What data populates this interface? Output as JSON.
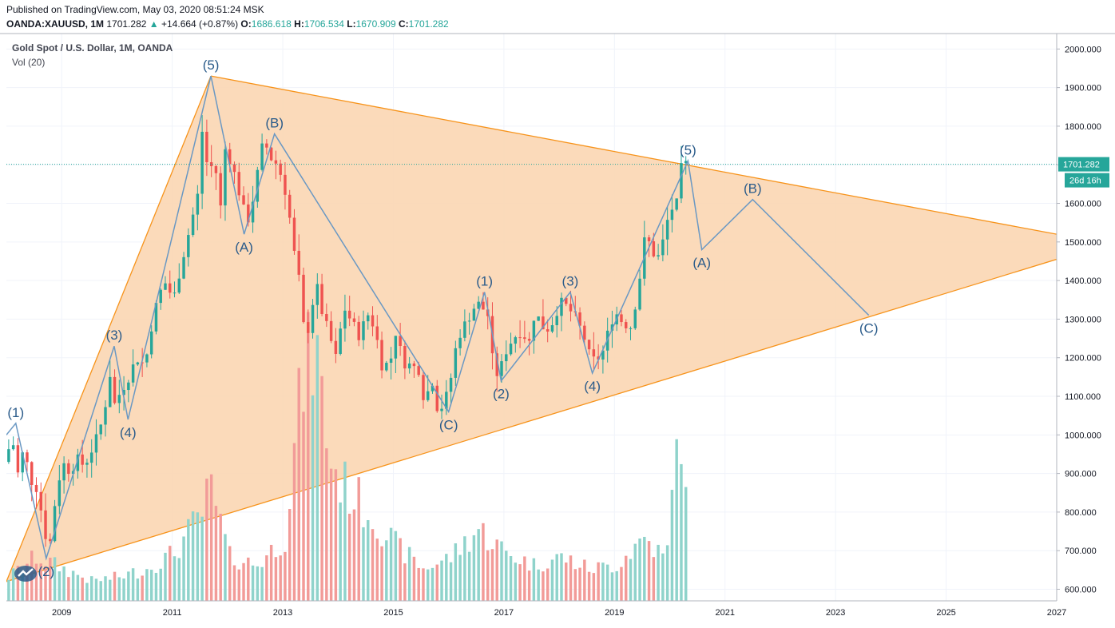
{
  "header": {
    "published": "Published on TradingView.com, May 03, 2020 08:51:24 MSK",
    "symbol": "OANDA:XAUUSD, 1M",
    "last": "1701.282",
    "change_arrow": "▲",
    "change": "+14.664 (+0.87%)",
    "open_label": "O:",
    "open": "1686.618",
    "high_label": "H:",
    "high": "1706.534",
    "low_label": "L:",
    "low": "1670.909",
    "close_label": "C:",
    "close": "1701.282"
  },
  "legend": {
    "title": "Gold Spot / U.S. Dollar, 1M, OANDA",
    "volume": "Vol (20)"
  },
  "colors": {
    "up": "#26a69a",
    "down": "#ef5350",
    "vol_up": "#8fd3cb",
    "vol_down": "#f29b98",
    "triangle_line": "#f7931a",
    "triangle_fill": "#fbd6b2",
    "wave": "#6a98c3",
    "label": "#2a5b8a",
    "price_tag": "#26a69a"
  },
  "chart_data": {
    "type": "candlestick",
    "title": "Gold Spot / U.S. Dollar, 1M, OANDA",
    "y_range": [
      570,
      2040
    ],
    "x_range": [
      2008.0,
      2027.0
    ],
    "y_ticks": [
      "600.000",
      "700.000",
      "800.000",
      "900.000",
      "1000.000",
      "1100.000",
      "1200.000",
      "1300.000",
      "1400.000",
      "1500.000",
      "1600.000",
      "1700.000",
      "1800.000",
      "1900.000",
      "2000.000"
    ],
    "x_ticks": [
      "2009",
      "2011",
      "2013",
      "2015",
      "2017",
      "2019",
      "2021",
      "2023",
      "2025",
      "2027"
    ],
    "last_price": "1701.282",
    "countdown": "26d 16h",
    "price_path": [
      [
        2008.0,
        930
      ],
      [
        2008.15,
        990
      ],
      [
        2008.25,
        900
      ],
      [
        2008.35,
        960
      ],
      [
        2008.5,
        880
      ],
      [
        2008.6,
        860
      ],
      [
        2008.75,
        740
      ],
      [
        2008.85,
        720
      ],
      [
        2008.95,
        870
      ],
      [
        2009.1,
        930
      ],
      [
        2009.2,
        900
      ],
      [
        2009.3,
        940
      ],
      [
        2009.45,
        920
      ],
      [
        2009.55,
        950
      ],
      [
        2009.7,
        1000
      ],
      [
        2009.8,
        1050
      ],
      [
        2009.92,
        1160
      ],
      [
        2010.0,
        1080
      ],
      [
        2010.1,
        1110
      ],
      [
        2010.25,
        1150
      ],
      [
        2010.4,
        1200
      ],
      [
        2010.55,
        1180
      ],
      [
        2010.7,
        1310
      ],
      [
        2010.85,
        1380
      ],
      [
        2010.95,
        1400
      ],
      [
        2011.05,
        1340
      ],
      [
        2011.2,
        1440
      ],
      [
        2011.35,
        1530
      ],
      [
        2011.5,
        1620
      ],
      [
        2011.6,
        1820
      ],
      [
        2011.7,
        1650
      ],
      [
        2011.8,
        1740
      ],
      [
        2011.9,
        1560
      ],
      [
        2012.0,
        1740
      ],
      [
        2012.1,
        1710
      ],
      [
        2012.2,
        1660
      ],
      [
        2012.3,
        1600
      ],
      [
        2012.4,
        1550
      ],
      [
        2012.5,
        1610
      ],
      [
        2012.6,
        1690
      ],
      [
        2012.7,
        1770
      ],
      [
        2012.8,
        1720
      ],
      [
        2012.9,
        1710
      ],
      [
        2013.05,
        1660
      ],
      [
        2013.15,
        1580
      ],
      [
        2013.25,
        1470
      ],
      [
        2013.35,
        1390
      ],
      [
        2013.45,
        1230
      ],
      [
        2013.55,
        1320
      ],
      [
        2013.65,
        1390
      ],
      [
        2013.75,
        1320
      ],
      [
        2013.9,
        1250
      ],
      [
        2014.0,
        1200
      ],
      [
        2014.15,
        1330
      ],
      [
        2014.3,
        1290
      ],
      [
        2014.45,
        1250
      ],
      [
        2014.55,
        1320
      ],
      [
        2014.7,
        1280
      ],
      [
        2014.85,
        1170
      ],
      [
        2015.0,
        1200
      ],
      [
        2015.1,
        1280
      ],
      [
        2015.2,
        1190
      ],
      [
        2015.35,
        1180
      ],
      [
        2015.5,
        1170
      ],
      [
        2015.6,
        1090
      ],
      [
        2015.75,
        1140
      ],
      [
        2015.85,
        1060
      ],
      [
        2015.95,
        1080
      ],
      [
        2016.05,
        1120
      ],
      [
        2016.2,
        1250
      ],
      [
        2016.35,
        1290
      ],
      [
        2016.5,
        1330
      ],
      [
        2016.6,
        1340
      ],
      [
        2016.75,
        1310
      ],
      [
        2016.85,
        1175
      ],
      [
        2016.95,
        1150
      ],
      [
        2017.05,
        1210
      ],
      [
        2017.2,
        1250
      ],
      [
        2017.35,
        1270
      ],
      [
        2017.5,
        1240
      ],
      [
        2017.6,
        1320
      ],
      [
        2017.75,
        1280
      ],
      [
        2017.85,
        1275
      ],
      [
        2017.95,
        1300
      ],
      [
        2018.05,
        1345
      ],
      [
        2018.2,
        1330
      ],
      [
        2018.35,
        1300
      ],
      [
        2018.5,
        1250
      ],
      [
        2018.6,
        1200
      ],
      [
        2018.7,
        1190
      ],
      [
        2018.85,
        1220
      ],
      [
        2018.95,
        1280
      ],
      [
        2019.05,
        1320
      ],
      [
        2019.2,
        1290
      ],
      [
        2019.35,
        1280
      ],
      [
        2019.5,
        1410
      ],
      [
        2019.6,
        1520
      ],
      [
        2019.75,
        1470
      ],
      [
        2019.85,
        1460
      ],
      [
        2019.95,
        1520
      ],
      [
        2020.05,
        1590
      ],
      [
        2020.15,
        1580
      ],
      [
        2020.25,
        1690
      ],
      [
        2020.33,
        1701.282
      ]
    ],
    "volume_path": [
      [
        2008.0,
        30
      ],
      [
        2008.5,
        55
      ],
      [
        2009.0,
        40
      ],
      [
        2009.5,
        25
      ],
      [
        2010.0,
        30
      ],
      [
        2010.5,
        40
      ],
      [
        2011.0,
        60
      ],
      [
        2011.5,
        110
      ],
      [
        2011.65,
        140
      ],
      [
        2012.0,
        55
      ],
      [
        2012.5,
        45
      ],
      [
        2013.0,
        80
      ],
      [
        2013.3,
        270
      ],
      [
        2013.55,
        320
      ],
      [
        2013.8,
        180
      ],
      [
        2014.0,
        150
      ],
      [
        2014.4,
        120
      ],
      [
        2015.0,
        70
      ],
      [
        2015.5,
        40
      ],
      [
        2016.0,
        55
      ],
      [
        2016.5,
        90
      ],
      [
        2017.0,
        60
      ],
      [
        2017.5,
        45
      ],
      [
        2018.0,
        55
      ],
      [
        2018.5,
        40
      ],
      [
        2019.0,
        45
      ],
      [
        2019.5,
        80
      ],
      [
        2019.9,
        50
      ],
      [
        2020.15,
        240
      ],
      [
        2020.33,
        20
      ]
    ],
    "triangle": {
      "upper_from": [
        2011.7,
        1930
      ],
      "upper_to": [
        2027.0,
        1520
      ],
      "lower_from": [
        2008.0,
        620
      ],
      "lower_to": [
        2027.0,
        1455
      ],
      "left_from": [
        2008.0,
        620
      ],
      "left_to": [
        2011.7,
        1930
      ]
    },
    "wave_path": [
      [
        2008.0,
        1000
      ],
      [
        2008.17,
        1030
      ],
      [
        2008.72,
        680
      ],
      [
        2009.95,
        1230
      ],
      [
        2010.2,
        1040
      ],
      [
        2011.7,
        1930
      ],
      [
        2012.3,
        1520
      ],
      [
        2012.85,
        1780
      ],
      [
        2016.0,
        1060
      ],
      [
        2016.65,
        1370
      ],
      [
        2016.95,
        1140
      ],
      [
        2018.2,
        1370
      ],
      [
        2018.6,
        1160
      ],
      [
        2020.33,
        1710
      ],
      [
        2020.58,
        1480
      ],
      [
        2021.5,
        1610
      ],
      [
        2023.6,
        1310
      ]
    ],
    "wave_labels": [
      {
        "text": "(1)",
        "x": 2008.17,
        "y": 1030,
        "pos": "above"
      },
      {
        "text": "(2)",
        "x": 2008.72,
        "y": 680,
        "pos": "below"
      },
      {
        "text": "(3)",
        "x": 2009.95,
        "y": 1230,
        "pos": "above"
      },
      {
        "text": "(4)",
        "x": 2010.2,
        "y": 1040,
        "pos": "below"
      },
      {
        "text": "(5)",
        "x": 2011.7,
        "y": 1930,
        "pos": "above"
      },
      {
        "text": "(A)",
        "x": 2012.3,
        "y": 1520,
        "pos": "below"
      },
      {
        "text": "(B)",
        "x": 2012.85,
        "y": 1780,
        "pos": "above"
      },
      {
        "text": "(C)",
        "x": 2016.0,
        "y": 1060,
        "pos": "below"
      },
      {
        "text": "(1)",
        "x": 2016.65,
        "y": 1370,
        "pos": "above"
      },
      {
        "text": "(2)",
        "x": 2016.95,
        "y": 1140,
        "pos": "below"
      },
      {
        "text": "(3)",
        "x": 2018.2,
        "y": 1370,
        "pos": "above"
      },
      {
        "text": "(4)",
        "x": 2018.6,
        "y": 1160,
        "pos": "below"
      },
      {
        "text": "(5)",
        "x": 2020.33,
        "y": 1710,
        "pos": "above"
      },
      {
        "text": "(A)",
        "x": 2020.58,
        "y": 1480,
        "pos": "below"
      },
      {
        "text": "(B)",
        "x": 2021.5,
        "y": 1610,
        "pos": "above"
      },
      {
        "text": "(C)",
        "x": 2023.6,
        "y": 1310,
        "pos": "below"
      }
    ]
  }
}
